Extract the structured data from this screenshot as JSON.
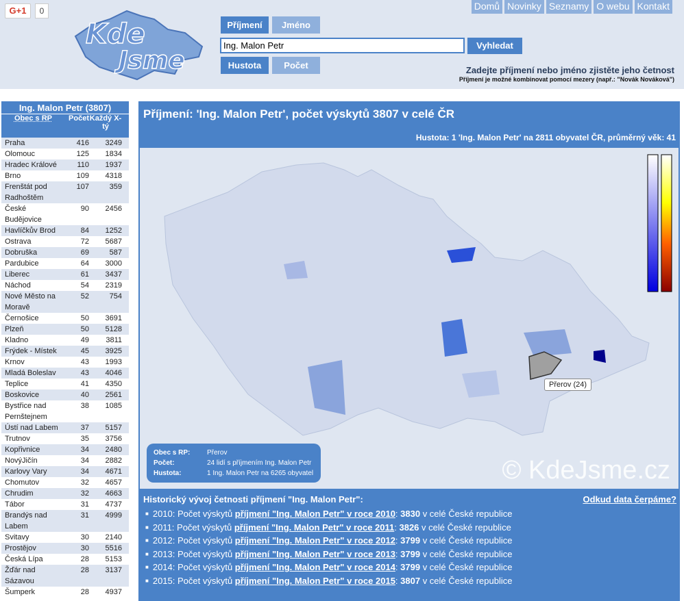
{
  "header": {
    "gplus_label": "G+1",
    "gplus_count": "0",
    "logo_text": "Kde Jsme",
    "tabs_top": [
      "Příjmení",
      "Jméno"
    ],
    "tabs_bottom": [
      "Hustota",
      "Počet"
    ],
    "search_value": "Ing. Malon Petr",
    "search_button": "Vyhledat",
    "nav": [
      "Domů",
      "Novinky",
      "Seznamy",
      "O webu",
      "Kontakt"
    ],
    "hint": "Zadejte příjmení nebo jméno zjistěte jeho četnost",
    "hint_small": "Příjmení je možné kombinovat pomocí mezery (např.: \"Novák Nováková\")"
  },
  "sidebar": {
    "title": "Ing. Malon Petr (3807)",
    "columns": [
      "Obec s RP",
      "Počet",
      "Každý X-tý"
    ],
    "rows": [
      [
        "Praha",
        "416",
        "3249"
      ],
      [
        "Olomouc",
        "125",
        "1834"
      ],
      [
        "Hradec Králové",
        "110",
        "1937"
      ],
      [
        "Brno",
        "109",
        "4318"
      ],
      [
        "Frenštát pod Radhoštěm",
        "107",
        "359"
      ],
      [
        "České Budějovice",
        "90",
        "2456"
      ],
      [
        "Havlíčkův Brod",
        "84",
        "1252"
      ],
      [
        "Ostrava",
        "72",
        "5687"
      ],
      [
        "Dobruška",
        "69",
        "587"
      ],
      [
        "Pardubice",
        "64",
        "3000"
      ],
      [
        "Liberec",
        "61",
        "3437"
      ],
      [
        "Náchod",
        "54",
        "2319"
      ],
      [
        "Nové Město na Moravě",
        "52",
        "754"
      ],
      [
        "Černošice",
        "50",
        "3691"
      ],
      [
        "Plzeň",
        "50",
        "5128"
      ],
      [
        "Kladno",
        "49",
        "3811"
      ],
      [
        "Frýdek - Místek",
        "45",
        "3925"
      ],
      [
        "Krnov",
        "43",
        "1993"
      ],
      [
        "Mladá Boleslav",
        "43",
        "4046"
      ],
      [
        "Teplice",
        "41",
        "4350"
      ],
      [
        "Boskovice",
        "40",
        "2561"
      ],
      [
        "Bystřice nad Pernštejnem",
        "38",
        "1085"
      ],
      [
        "Ústí nad Labem",
        "37",
        "5157"
      ],
      [
        "Trutnov",
        "35",
        "3756"
      ],
      [
        "Kopřivnice",
        "34",
        "2480"
      ],
      [
        "NovýJičín",
        "34",
        "2882"
      ],
      [
        "Karlovy Vary",
        "34",
        "4671"
      ],
      [
        "Chomutov",
        "32",
        "4657"
      ],
      [
        "Chrudim",
        "32",
        "4663"
      ],
      [
        "Tábor",
        "31",
        "4737"
      ],
      [
        "Brandýs nad Labem",
        "31",
        "4999"
      ],
      [
        "Svitavy",
        "30",
        "2140"
      ],
      [
        "Prostějov",
        "30",
        "5516"
      ],
      [
        "Česká Lípa",
        "28",
        "5153"
      ],
      [
        "Žďár nad Sázavou",
        "28",
        "3137"
      ],
      [
        "Šumperk",
        "28",
        "4937"
      ]
    ]
  },
  "main": {
    "title": "Příjmení: 'Ing. Malon Petr', počet výskytů 3807 v celé ČR",
    "subtitle": "Hustota: 1 'Ing. Malon Petr' na 2811 obyvatel ČR, průměrný věk: 41",
    "tooltip": "Přerov (24)",
    "watermark": "© KdeJsme.cz",
    "info": {
      "k1": "Obec s RP:",
      "v1": "Přerov",
      "k2": "Počet:",
      "v2": "24 lidí s příjmením Ing. Malon Petr",
      "k3": "Hustota:",
      "v3": "1 Ing. Malon Petr na 6265 obyvatel"
    },
    "history_title": "Historický vývoj četnosti příjmení \"Ing. Malon Petr\":",
    "history_source": "Odkud data čerpáme?",
    "history": [
      {
        "pre": "2010: Počet výskytů ",
        "link": "příjmení \"Ing. Malon Petr\" v roce 2010",
        "count": "3830",
        "post": " v celé České republice"
      },
      {
        "pre": "2011: Počet výskytů ",
        "link": "příjmení \"Ing. Malon Petr\" v roce 2011",
        "count": "3826",
        "post": " v celé České republice"
      },
      {
        "pre": "2012: Počet výskytů ",
        "link": "příjmení \"Ing. Malon Petr\" v roce 2012",
        "count": "3799",
        "post": " v celé České republice"
      },
      {
        "pre": "2013: Počet výskytů ",
        "link": "příjmení \"Ing. Malon Petr\" v roce 2013",
        "count": "3799",
        "post": " v celé České republice"
      },
      {
        "pre": "2014: Počet výskytů ",
        "link": "příjmení \"Ing. Malon Petr\" v roce 2014",
        "count": "3799",
        "post": " v celé České republice"
      },
      {
        "pre": "2015: Počet výskytů ",
        "link": "příjmení \"Ing. Malon Petr\" v roce 2015",
        "count": "3807",
        "post": " v celé České republice"
      }
    ]
  },
  "colors": {
    "accent": "#4a82c8",
    "tab_inactive": "#8fb0dc",
    "page_bg": "#dfe6f1",
    "highlight_region": "#00008b"
  }
}
